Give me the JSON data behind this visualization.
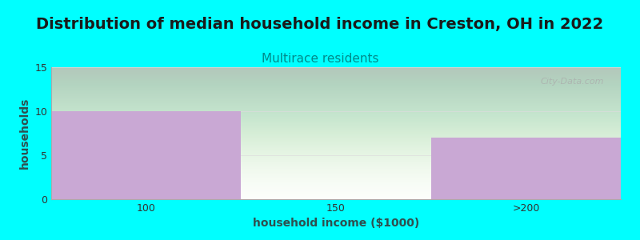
{
  "title": "Distribution of median household income in Creston, OH in 2022",
  "subtitle": "Multirace residents",
  "xlabel": "household income ($1000)",
  "ylabel": "households",
  "background_color": "#00FFFF",
  "plot_bg_top_color": "#e8f5e9",
  "plot_bg_bottom_color": "#ffffff",
  "bar_color": "#C9A8D4",
  "categories": [
    "100",
    "150",
    ">200"
  ],
  "values": [
    10,
    0,
    7
  ],
  "ylim": [
    0,
    15
  ],
  "yticks": [
    0,
    5,
    10,
    15
  ],
  "title_fontsize": 14,
  "title_fontweight": "bold",
  "subtitle_fontsize": 11,
  "subtitle_color": "#008B8B",
  "ylabel_color": "#2F4F4F",
  "xlabel_color": "#2F4F4F",
  "axis_label_fontsize": 10,
  "tick_fontsize": 9,
  "watermark": "City-Data.com"
}
